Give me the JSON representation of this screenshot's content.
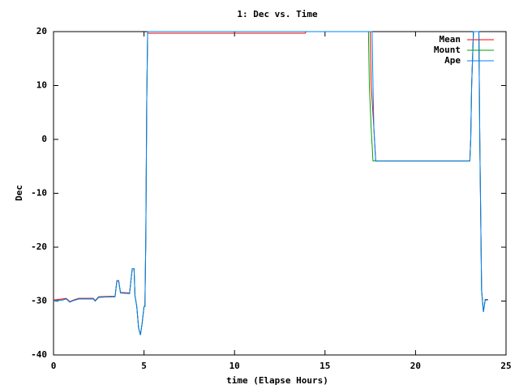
{
  "chart_data": {
    "type": "line",
    "title": "1: Dec vs. Time",
    "x_label": "time (Elapse Hours)",
    "y_label": "Dec",
    "xlim": [
      0,
      25
    ],
    "xticks": [
      0,
      5,
      10,
      15,
      20,
      25
    ],
    "ylim": [
      -40,
      20
    ],
    "yticks": [
      -40,
      -30,
      -20,
      -10,
      0,
      10,
      20
    ],
    "grid": false,
    "legend": "top-right",
    "series": [
      {
        "name": "Mean",
        "color": "#ff0000",
        "x": [
          0,
          0.5,
          0.7,
          0.9,
          1.1,
          1.4,
          2.2,
          2.3,
          2.5,
          3.4,
          3.5,
          3.6,
          3.7,
          4.2,
          4.35,
          4.45,
          4.5,
          4.6,
          4.7,
          4.8,
          4.9,
          5.0,
          5.05,
          5.1,
          5.15,
          5.2,
          13.9,
          13.95,
          17.5,
          17.55,
          17.7,
          17.8,
          23.0,
          23.05,
          23.1,
          23.2,
          23.5,
          23.55,
          23.65,
          23.75,
          23.85,
          24.0
        ],
        "values": [
          -29.8,
          -29.6,
          -29.5,
          -30.1,
          -29.8,
          -29.5,
          -29.5,
          -29.9,
          -29.2,
          -29.1,
          -26.2,
          -26.2,
          -28.4,
          -28.5,
          -24,
          -24,
          -29,
          -31,
          -35,
          -36.3,
          -34,
          -31,
          -31,
          -18,
          7,
          19.7,
          19.7,
          20,
          20,
          10,
          2,
          -4,
          -4,
          0,
          10,
          20,
          20,
          0,
          -28,
          -32,
          -29.7,
          -29.7
        ]
      },
      {
        "name": "Mount",
        "color": "#00a000",
        "x": [
          0,
          0.5,
          0.7,
          0.9,
          1.1,
          1.4,
          2.2,
          2.3,
          2.5,
          3.4,
          3.5,
          3.6,
          3.7,
          4.2,
          4.35,
          4.45,
          4.5,
          4.6,
          4.7,
          4.8,
          4.9,
          5.0,
          5.05,
          5.1,
          5.15,
          5.2,
          17.4,
          17.45,
          17.55,
          17.65,
          23.0,
          23.05,
          23.1,
          23.2,
          23.5,
          23.55,
          23.65,
          23.75,
          23.85,
          24.0
        ],
        "values": [
          -30,
          -29.8,
          -29.6,
          -30.2,
          -29.9,
          -29.6,
          -29.6,
          -30,
          -29.3,
          -29.2,
          -26.3,
          -26.3,
          -28.5,
          -28.6,
          -24,
          -24,
          -29,
          -31,
          -35,
          -36.3,
          -34,
          -31,
          -31,
          -18,
          7,
          20,
          20,
          10,
          2,
          -4,
          -4,
          0,
          10,
          20,
          20,
          0,
          -28,
          -32,
          -29.8,
          -29.8
        ]
      },
      {
        "name": "Ape",
        "color": "#0080ff",
        "x": [
          0,
          0.5,
          0.7,
          0.9,
          1.1,
          1.4,
          2.2,
          2.3,
          2.5,
          3.4,
          3.5,
          3.6,
          3.7,
          4.2,
          4.35,
          4.45,
          4.5,
          4.6,
          4.7,
          4.8,
          4.9,
          5.0,
          5.05,
          5.1,
          5.15,
          5.2,
          17.6,
          17.65,
          17.7,
          17.8,
          23.0,
          23.05,
          23.1,
          23.2,
          23.5,
          23.55,
          23.65,
          23.75,
          23.85,
          24.0
        ],
        "values": [
          -30,
          -29.8,
          -29.6,
          -30.2,
          -29.9,
          -29.6,
          -29.6,
          -30,
          -29.3,
          -29.2,
          -26.3,
          -26.3,
          -28.5,
          -28.6,
          -24,
          -24,
          -29,
          -31,
          -35,
          -36.3,
          -34,
          -31,
          -31,
          -18,
          7,
          20,
          20,
          10,
          2,
          -4,
          -4,
          0,
          10,
          20,
          20,
          0,
          -28,
          -32,
          -29.8,
          -29.8
        ]
      }
    ]
  }
}
